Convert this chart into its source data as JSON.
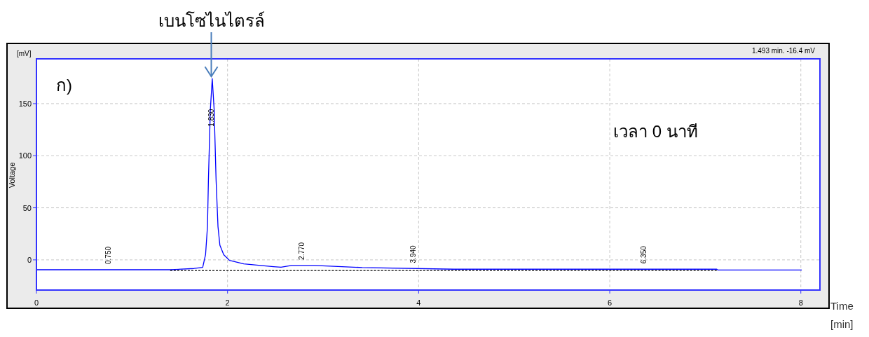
{
  "chart_data": {
    "type": "line",
    "xlabel": "Time [min]",
    "ylabel": "Voltage",
    "annotations": [
      {
        "text": "เบนโซไนไตรล์",
        "x": 1.83,
        "y": 174
      },
      "ก)",
      "เวลา 0 นาที",
      "1.493 min.  -16.4 mV",
      "[mV]",
      {
        "text": "0.750",
        "x": 0.75,
        "y": -9.5
      },
      {
        "text": "1.830",
        "x": 1.83,
        "y": 128
      },
      {
        "text": "2.770",
        "x": 2.77,
        "y": -5.4
      },
      {
        "text": "3.940",
        "x": 3.94,
        "y": -8.4
      },
      {
        "text": "6.350",
        "x": 6.35,
        "y": -9
      }
    ],
    "series": [
      {
        "color": "#0000ff",
        "x": [
          0,
          1.4,
          1.65,
          1.74,
          1.77,
          1.79,
          1.8,
          1.82,
          1.84,
          1.86,
          1.88,
          1.9,
          1.92,
          1.96,
          2.02,
          2.17,
          2.48,
          2.56,
          2.67,
          2.91,
          3.41,
          4.37,
          7.12,
          7.13,
          8.01
        ],
        "values": [
          -9.5,
          -9.5,
          -8.3,
          -7.2,
          5,
          32,
          77,
          144,
          174,
          144,
          77,
          32,
          14,
          5,
          -0.5,
          -3.8,
          -6.5,
          -7.1,
          -5.4,
          -5.4,
          -7.4,
          -9,
          -9,
          -9.7,
          -9.7
        ]
      },
      {
        "color": "#000000",
        "line_style": "dashed",
        "x": [
          1.4,
          7.12
        ],
        "values": [
          -10.3,
          -10.3
        ]
      }
    ],
    "xlim": [
      0,
      8.2
    ],
    "ylim": [
      -29,
      193
    ],
    "xticks": [
      0,
      2,
      4,
      6,
      8
    ],
    "yticks": [
      0,
      50,
      100,
      150
    ],
    "grid": true
  }
}
